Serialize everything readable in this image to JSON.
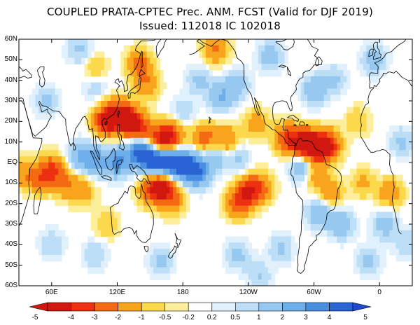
{
  "map": {
    "title_line1": "COUPLED PRATA-CPTEC Prec. ANM. FCST  (Valid for DJF 2019)",
    "title_line2": "Issued:  112018 IC 102018",
    "lat_labels": [
      "60N",
      "50N",
      "40N",
      "30N",
      "20N",
      "10N",
      "EQ",
      "10S",
      "20S",
      "30S",
      "40S",
      "50S",
      "60S"
    ],
    "lon_labels": [
      "60E",
      "120E",
      "180",
      "120W",
      "60W",
      "0"
    ],
    "lon_range": [
      30,
      390
    ],
    "lat_range": [
      -60,
      60
    ],
    "colorbar": {
      "labels": [
        "-5",
        "-4",
        "-3",
        "-2",
        "-1",
        "-0.5",
        "-0.2",
        "0.2",
        "0.5",
        "1",
        "2",
        "3",
        "4",
        "5"
      ],
      "colors": [
        "#d01810",
        "#ec3010",
        "#f46a12",
        "#f8a41c",
        "#fcd84c",
        "#fcee9a",
        "#ffffff",
        "#e0f0fc",
        "#bcdef6",
        "#96c8f0",
        "#6eaeea",
        "#4a8ee0",
        "#2a64d4"
      ],
      "arrow_left_color": "#d01810",
      "arrow_right_color": "#1e4ad0"
    },
    "anomalies": [
      {
        "lon": 110,
        "lat": 20,
        "value": -4.5
      },
      {
        "lon": 128,
        "lat": 21,
        "value": -4.2
      },
      {
        "lon": 140,
        "lat": 17,
        "value": -3.5
      },
      {
        "lon": 160,
        "lat": 11,
        "value": -3.8
      },
      {
        "lon": 170,
        "lat": 13,
        "value": -3.0
      },
      {
        "lon": 120,
        "lat": 25,
        "value": -2.0
      },
      {
        "lon": 200,
        "lat": 12,
        "value": -2.5
      },
      {
        "lon": 220,
        "lat": 11,
        "value": -2.2
      },
      {
        "lon": 247,
        "lat": 19,
        "value": -1.5
      },
      {
        "lon": 140,
        "lat": 48,
        "value": -2.5
      },
      {
        "lon": 147,
        "lat": 38,
        "value": -1.8
      },
      {
        "lon": 100,
        "lat": 45,
        "value": -1.2
      },
      {
        "lon": 210,
        "lat": 55,
        "value": -2.2
      },
      {
        "lon": 290,
        "lat": 9,
        "value": -4.5
      },
      {
        "lon": 302,
        "lat": 8,
        "value": -4.2
      },
      {
        "lon": 313,
        "lat": 8,
        "value": -3.8
      },
      {
        "lon": 275,
        "lat": 12,
        "value": -3.0
      },
      {
        "lon": 300,
        "lat": -5,
        "value": -2.0
      },
      {
        "lon": 315,
        "lat": -15,
        "value": -1.8
      },
      {
        "lon": 160,
        "lat": -11,
        "value": -4.0
      },
      {
        "lon": 170,
        "lat": -18,
        "value": -2.5
      },
      {
        "lon": 150,
        "lat": -14,
        "value": -2.2
      },
      {
        "lon": 240,
        "lat": -14,
        "value": -3.5
      },
      {
        "lon": 230,
        "lat": -20,
        "value": -2.5
      },
      {
        "lon": 252,
        "lat": -12,
        "value": -2.0
      },
      {
        "lon": 60,
        "lat": -3,
        "value": -2.8
      },
      {
        "lon": 48,
        "lat": -8,
        "value": -2.2
      },
      {
        "lon": 72,
        "lat": -10,
        "value": -2.0
      },
      {
        "lon": 88,
        "lat": -14,
        "value": -1.6
      },
      {
        "lon": 32,
        "lat": -5,
        "value": -1.5
      },
      {
        "lon": 370,
        "lat": -15,
        "value": -1.8
      },
      {
        "lon": 110,
        "lat": -30,
        "value": -1.0
      },
      {
        "lon": 340,
        "lat": 20,
        "value": -1.0
      },
      {
        "lon": 345,
        "lat": -10,
        "value": -1.2
      },
      {
        "lon": 140,
        "lat": 5,
        "value": 4.5
      },
      {
        "lon": 155,
        "lat": 1,
        "value": 5.0
      },
      {
        "lon": 170,
        "lat": 0,
        "value": 4.8
      },
      {
        "lon": 185,
        "lat": -2,
        "value": 4.0
      },
      {
        "lon": 195,
        "lat": -5,
        "value": 2.8
      },
      {
        "lon": 120,
        "lat": 0,
        "value": 3.0
      },
      {
        "lon": 100,
        "lat": 1,
        "value": 2.5
      },
      {
        "lon": 85,
        "lat": 3,
        "value": 1.8
      },
      {
        "lon": 210,
        "lat": 3,
        "value": 1.5
      },
      {
        "lon": 230,
        "lat": 2,
        "value": 1.2
      },
      {
        "lon": 290,
        "lat": -2,
        "value": 2.5
      },
      {
        "lon": 305,
        "lat": -25,
        "value": 2.0
      },
      {
        "lon": 325,
        "lat": -30,
        "value": 1.8
      },
      {
        "lon": 365,
        "lat": -30,
        "value": 1.6
      },
      {
        "lon": 215,
        "lat": 32,
        "value": 2.0
      },
      {
        "lon": 230,
        "lat": 38,
        "value": 1.5
      },
      {
        "lon": 195,
        "lat": 40,
        "value": 1.2
      },
      {
        "lon": 300,
        "lat": 35,
        "value": 1.8
      },
      {
        "lon": 318,
        "lat": 40,
        "value": 1.2
      },
      {
        "lon": 355,
        "lat": 50,
        "value": 1.5
      },
      {
        "lon": 260,
        "lat": 52,
        "value": 1.6
      },
      {
        "lon": 100,
        "lat": 38,
        "value": 1.0
      },
      {
        "lon": 85,
        "lat": 55,
        "value": 1.2
      },
      {
        "lon": 55,
        "lat": 30,
        "value": 1.2
      },
      {
        "lon": 230,
        "lat": -45,
        "value": 1.3
      },
      {
        "lon": 270,
        "lat": -42,
        "value": 1.2
      },
      {
        "lon": 160,
        "lat": -48,
        "value": 1.2
      },
      {
        "lon": 100,
        "lat": -45,
        "value": 1.0
      },
      {
        "lon": 60,
        "lat": -40,
        "value": 1.0
      },
      {
        "lon": 350,
        "lat": -48,
        "value": 1.2
      },
      {
        "lon": 385,
        "lat": -40,
        "value": 1.0
      },
      {
        "lon": 380,
        "lat": 10,
        "value": 1.2
      },
      {
        "lon": 250,
        "lat": -55,
        "value": 1.0
      },
      {
        "lon": 180,
        "lat": 25,
        "value": 1.0
      }
    ]
  }
}
